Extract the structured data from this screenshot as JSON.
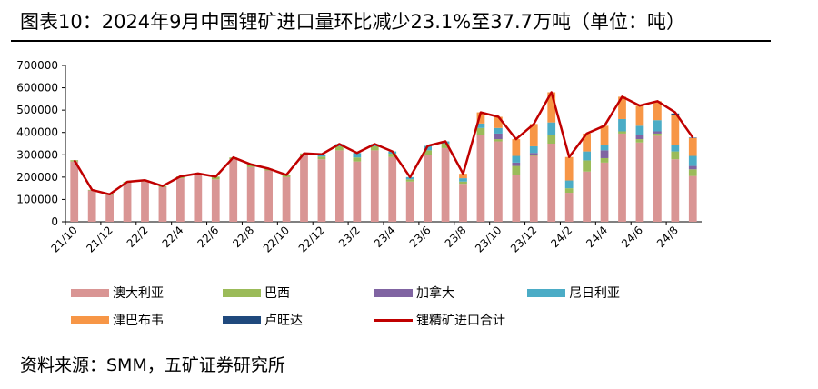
{
  "title": "图表10：2024年9月中国锂矿进口量环比减少23.1%至37.7万吨（单位：吨）",
  "source": "资料来源：SMM，五矿证券研究所",
  "chart_data": {
    "type": "bar",
    "stacked": true,
    "ylim": [
      0,
      700000
    ],
    "yticks": [
      "0",
      "100000",
      "200000",
      "300000",
      "400000",
      "500000",
      "600000",
      "700000"
    ],
    "x_tick_labels": [
      "21/10",
      "21/12",
      "22/2",
      "22/4",
      "22/6",
      "22/8",
      "22/10",
      "22/12",
      "23/2",
      "23/4",
      "23/6",
      "23/8",
      "23/10",
      "23/12",
      "24/2",
      "24/4",
      "24/6",
      "24/8"
    ],
    "categories": [
      "21/10",
      "21/11",
      "21/12",
      "22/1",
      "22/2",
      "22/3",
      "22/4",
      "22/5",
      "22/6",
      "22/7",
      "22/8",
      "22/9",
      "22/10",
      "22/11",
      "22/12",
      "23/1",
      "23/2",
      "23/3",
      "23/4",
      "23/5",
      "23/6",
      "23/7",
      "23/8",
      "23/9",
      "23/10",
      "23/11",
      "23/12",
      "24/1",
      "24/2",
      "24/3",
      "24/4",
      "24/5",
      "24/6",
      "24/7",
      "24/8",
      "24/9"
    ],
    "series": [
      {
        "name": "澳大利亚",
        "color": "#D99594",
        "values": [
          270000,
          140000,
          120000,
          175000,
          180000,
          155000,
          195000,
          210000,
          190000,
          280000,
          245000,
          230000,
          200000,
          300000,
          280000,
          320000,
          270000,
          320000,
          290000,
          180000,
          300000,
          330000,
          170000,
          390000,
          360000,
          210000,
          295000,
          350000,
          130000,
          225000,
          265000,
          395000,
          355000,
          385000,
          280000,
          205000
        ]
      },
      {
        "name": "巴西",
        "color": "#9BBB59",
        "values": [
          6000,
          3000,
          3000,
          4000,
          6000,
          5000,
          8000,
          6000,
          12000,
          8000,
          12000,
          8000,
          10000,
          6000,
          12000,
          18000,
          18000,
          18000,
          15000,
          10000,
          20000,
          20000,
          10000,
          30000,
          10000,
          40000,
          5000,
          40000,
          20000,
          50000,
          20000,
          10000,
          15000,
          10000,
          35000,
          30000
        ]
      },
      {
        "name": "加拿大",
        "color": "#8064A2",
        "values": [
          0,
          0,
          0,
          0,
          0,
          0,
          0,
          0,
          0,
          0,
          0,
          0,
          0,
          0,
          0,
          0,
          0,
          0,
          0,
          0,
          0,
          0,
          0,
          0,
          25000,
          15000,
          8000,
          0,
          0,
          0,
          35000,
          0,
          20000,
          10000,
          0,
          15000
        ]
      },
      {
        "name": "尼日利亚",
        "color": "#4BACC6",
        "values": [
          0,
          0,
          0,
          0,
          0,
          0,
          0,
          0,
          0,
          0,
          0,
          0,
          0,
          0,
          10000,
          10000,
          20000,
          10000,
          10000,
          10000,
          20000,
          10000,
          15000,
          20000,
          25000,
          30000,
          30000,
          55000,
          35000,
          40000,
          25000,
          55000,
          40000,
          50000,
          30000,
          45000
        ]
      },
      {
        "name": "津巴布韦",
        "color": "#F79646",
        "values": [
          0,
          0,
          0,
          0,
          0,
          0,
          0,
          0,
          0,
          0,
          0,
          0,
          0,
          0,
          0,
          0,
          0,
          0,
          0,
          0,
          0,
          0,
          20000,
          50000,
          50000,
          75000,
          100000,
          135000,
          105000,
          80000,
          85000,
          100000,
          90000,
          85000,
          135000,
          80000
        ]
      },
      {
        "name": "卢旺达",
        "color": "#1F497D",
        "values": [
          0,
          0,
          0,
          0,
          0,
          0,
          0,
          0,
          0,
          0,
          0,
          0,
          0,
          0,
          0,
          0,
          0,
          0,
          0,
          0,
          0,
          0,
          0,
          0,
          0,
          0,
          0,
          0,
          0,
          0,
          0,
          0,
          0,
          0,
          5000,
          2000
        ]
      }
    ],
    "line_series": {
      "name": "锂精矿进口合计",
      "color": "#C00000",
      "values": [
        276000,
        143000,
        123000,
        179000,
        186000,
        160000,
        203000,
        216000,
        202000,
        288000,
        257000,
        238000,
        210000,
        306000,
        302000,
        348000,
        308000,
        348000,
        315000,
        200000,
        340000,
        360000,
        215000,
        490000,
        470000,
        370000,
        438000,
        580000,
        290000,
        395000,
        430000,
        560000,
        520000,
        540000,
        490000,
        377000
      ]
    }
  }
}
